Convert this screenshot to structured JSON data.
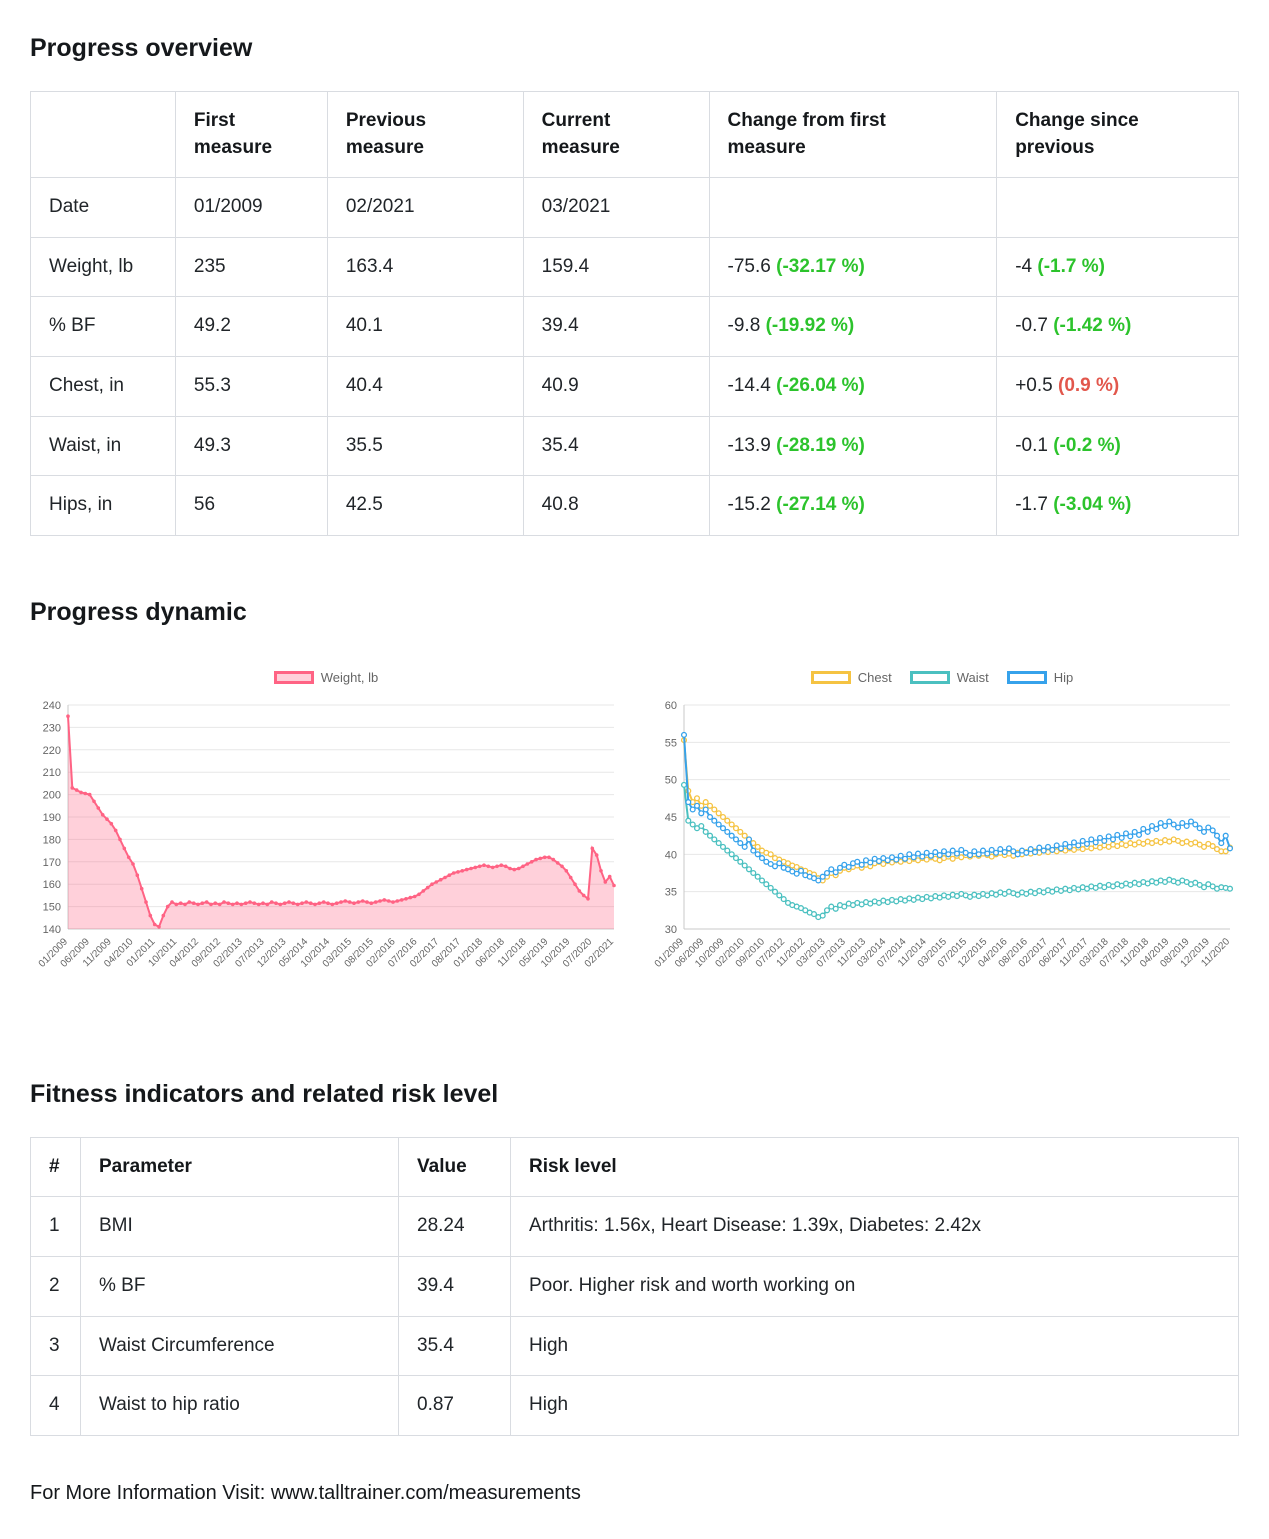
{
  "page": {
    "footer": "For More Information Visit: www.talltrainer.com/measurements"
  },
  "sections": {
    "overview": {
      "title": "Progress overview"
    },
    "dynamic": {
      "title": "Progress dynamic"
    },
    "risk": {
      "title": "Fitness indicators and related risk level"
    }
  },
  "colors": {
    "good": "#2cc32c",
    "bad": "#e2574c",
    "weight": "#ff6384",
    "chest": "#f5c342",
    "waist": "#4bc0c0",
    "hip": "#36a2eb"
  },
  "overview_table": {
    "headers": [
      "",
      "First measure",
      "Previous measure",
      "Current measure",
      "Change from first measure",
      "Change since previous"
    ],
    "rows": [
      {
        "label": "Date",
        "first": "01/2009",
        "previous": "02/2021",
        "current": "03/2021",
        "change_first": null,
        "change_previous": null
      },
      {
        "label": "Weight, lb",
        "first": "235",
        "previous": "163.4",
        "current": "159.4",
        "change_first": {
          "value": "-75.6",
          "pct": "(-32.17 %)",
          "trend": "good"
        },
        "change_previous": {
          "value": "-4",
          "pct": "(-1.7 %)",
          "trend": "good"
        }
      },
      {
        "label": "% BF",
        "first": "49.2",
        "previous": "40.1",
        "current": "39.4",
        "change_first": {
          "value": "-9.8",
          "pct": "(-19.92 %)",
          "trend": "good"
        },
        "change_previous": {
          "value": "-0.7",
          "pct": "(-1.42 %)",
          "trend": "good"
        }
      },
      {
        "label": "Chest, in",
        "first": "55.3",
        "previous": "40.4",
        "current": "40.9",
        "change_first": {
          "value": "-14.4",
          "pct": "(-26.04 %)",
          "trend": "good"
        },
        "change_previous": {
          "value": "+0.5",
          "pct": "(0.9 %)",
          "trend": "bad"
        }
      },
      {
        "label": "Waist, in",
        "first": "49.3",
        "previous": "35.5",
        "current": "35.4",
        "change_first": {
          "value": "-13.9",
          "pct": "(-28.19 %)",
          "trend": "good"
        },
        "change_previous": {
          "value": "-0.1",
          "pct": "(-0.2 %)",
          "trend": "good"
        }
      },
      {
        "label": "Hips, in",
        "first": "56",
        "previous": "42.5",
        "current": "40.8",
        "change_first": {
          "value": "-15.2",
          "pct": "(-27.14 %)",
          "trend": "good"
        },
        "change_previous": {
          "value": "-1.7",
          "pct": "(-3.04 %)",
          "trend": "good"
        }
      }
    ]
  },
  "chart_data": [
    {
      "type": "line",
      "ylim": [
        140,
        240
      ],
      "ystep": 10,
      "grid": true,
      "legend_position": "top",
      "x_ticks": [
        "01/2009",
        "06/2009",
        "11/2009",
        "04/2010",
        "01/2011",
        "10/2011",
        "04/2012",
        "09/2012",
        "02/2013",
        "07/2013",
        "12/2013",
        "05/2014",
        "10/2014",
        "03/2015",
        "08/2015",
        "02/2016",
        "07/2016",
        "02/2017",
        "08/2017",
        "01/2018",
        "06/2018",
        "11/2018",
        "05/2019",
        "10/2019",
        "07/2020",
        "02/2021"
      ],
      "series": [
        {
          "name": "Weight, lb",
          "color": "#ff6384",
          "fill_color": "rgba(255,99,132,0.3)",
          "marker": "filled",
          "values": [
            235,
            203,
            202,
            201,
            200.5,
            200,
            197,
            194,
            191,
            189,
            187,
            184,
            180,
            176,
            172,
            169,
            164,
            158,
            152,
            146,
            142,
            141,
            146,
            150,
            152,
            151,
            151.5,
            151,
            152,
            151.5,
            151,
            151.5,
            152,
            151,
            151.5,
            151,
            152,
            151.5,
            151,
            151.5,
            151,
            151.5,
            152,
            151.5,
            151,
            151.5,
            151,
            152,
            151.5,
            151,
            151.5,
            152,
            151.5,
            151,
            151.5,
            152,
            151.5,
            151,
            151.5,
            152,
            151.5,
            151,
            151.5,
            152,
            152.5,
            152,
            151.5,
            152,
            152.5,
            152,
            151.5,
            152,
            152.5,
            153,
            152.5,
            152,
            152.5,
            153,
            153.5,
            154,
            154.5,
            155.5,
            157,
            158.5,
            160,
            161,
            162,
            163,
            164,
            165,
            165.5,
            166,
            166.5,
            167,
            167.5,
            168,
            168.5,
            168,
            167.5,
            168,
            168.5,
            168,
            167,
            166.5,
            167,
            168,
            169,
            170,
            171,
            171.5,
            172,
            172,
            171,
            169.5,
            168,
            166,
            163,
            160,
            157,
            155,
            153.5,
            176,
            173,
            166,
            161,
            163.4,
            159.4
          ]
        }
      ]
    },
    {
      "type": "line",
      "ylim": [
        30,
        60
      ],
      "ystep": 5,
      "grid": true,
      "legend_position": "top",
      "x_ticks": [
        "01/2009",
        "06/2009",
        "10/2009",
        "02/2010",
        "09/2010",
        "07/2012",
        "11/2012",
        "03/2013",
        "07/2013",
        "11/2013",
        "03/2014",
        "07/2014",
        "11/2014",
        "03/2015",
        "07/2015",
        "12/2015",
        "04/2016",
        "08/2016",
        "02/2017",
        "06/2017",
        "11/2017",
        "03/2018",
        "07/2018",
        "11/2018",
        "04/2019",
        "08/2019",
        "12/2019",
        "11/2020"
      ],
      "series": [
        {
          "name": "Chest",
          "color": "#f5c342",
          "fill_color": null,
          "marker": "open",
          "values": [
            55.3,
            48.5,
            47,
            47.5,
            46.5,
            47,
            46.5,
            46,
            45.5,
            45,
            44.5,
            44,
            43.5,
            43,
            42.5,
            42,
            41.5,
            41,
            40.5,
            40.2,
            40,
            39.5,
            39.3,
            39,
            38.8,
            38.5,
            38.3,
            38,
            37.8,
            37.5,
            37.3,
            36.8,
            36.5,
            37,
            37.5,
            37.2,
            37.8,
            38.2,
            38,
            38.3,
            38.5,
            38.2,
            38.6,
            38.4,
            38.8,
            39,
            38.7,
            39.1,
            38.9,
            39.2,
            39,
            39.3,
            39.1,
            39.4,
            39.2,
            39.5,
            39.3,
            39.6,
            39.4,
            39.2,
            39.5,
            39.7,
            39.4,
            39.8,
            39.6,
            39.9,
            39.7,
            40,
            39.8,
            40.1,
            39.9,
            39.7,
            40,
            40.2,
            39.9,
            40.1,
            39.8,
            40.2,
            40,
            40.3,
            40.1,
            40.4,
            40.2,
            40.5,
            40.3,
            40.6,
            40.4,
            40.7,
            40.5,
            40.8,
            40.6,
            40.9,
            40.7,
            41,
            40.8,
            41.1,
            40.9,
            41.2,
            41,
            41.3,
            41.1,
            41.4,
            41.2,
            41.5,
            41.3,
            41.6,
            41.4,
            41.7,
            41.5,
            41.8,
            41.6,
            41.9,
            41.7,
            42,
            41.8,
            41.5,
            41.7,
            41.4,
            41.6,
            41.3,
            41,
            41.4,
            41.1,
            40.7,
            40.4,
            40.4,
            40.9
          ]
        },
        {
          "name": "Waist",
          "color": "#4bc0c0",
          "fill_color": null,
          "marker": "open",
          "values": [
            49.3,
            44.5,
            44,
            43.5,
            43.8,
            43,
            42.5,
            42,
            41.5,
            41,
            40.5,
            40,
            39.5,
            39,
            38.5,
            38,
            37.5,
            37,
            36.5,
            36,
            35.5,
            35,
            34.5,
            34,
            33.5,
            33.2,
            33,
            32.8,
            32.5,
            32.2,
            32,
            31.6,
            31.8,
            32.5,
            33,
            32.7,
            33.2,
            33,
            33.4,
            33.2,
            33.5,
            33.3,
            33.6,
            33.4,
            33.7,
            33.5,
            33.8,
            33.6,
            33.9,
            33.7,
            34,
            33.8,
            34.1,
            33.9,
            34.2,
            34,
            34.3,
            34.1,
            34.4,
            34.2,
            34.5,
            34.3,
            34.6,
            34.4,
            34.7,
            34.5,
            34.3,
            34.6,
            34.4,
            34.7,
            34.5,
            34.8,
            34.6,
            34.9,
            34.7,
            35,
            34.8,
            34.6,
            34.9,
            34.7,
            35,
            34.8,
            35.1,
            34.9,
            35.2,
            35,
            35.3,
            35.1,
            35.4,
            35.2,
            35.5,
            35.3,
            35.6,
            35.4,
            35.7,
            35.5,
            35.8,
            35.6,
            35.9,
            35.7,
            36,
            35.8,
            36.1,
            35.9,
            36.2,
            36,
            36.3,
            36.1,
            36.4,
            36.2,
            36.5,
            36.3,
            36.6,
            36.4,
            36.2,
            36.5,
            36.3,
            36,
            36.2,
            35.9,
            35.6,
            36,
            35.7,
            35.4,
            35.6,
            35.5,
            35.4
          ]
        },
        {
          "name": "Hip",
          "color": "#36a2eb",
          "fill_color": null,
          "marker": "open",
          "values": [
            56,
            47,
            46,
            46.5,
            45.5,
            46,
            45,
            44.5,
            44,
            43.5,
            43,
            42.5,
            42,
            41.5,
            41,
            42,
            40.5,
            40,
            39.5,
            39,
            38.7,
            38.4,
            38.8,
            38.2,
            38,
            37.7,
            37.4,
            37.8,
            37.2,
            37,
            36.8,
            36.5,
            37,
            37.5,
            38,
            37.6,
            38.2,
            38.6,
            38.3,
            38.8,
            39,
            38.6,
            39.2,
            38.9,
            39.4,
            39.1,
            39.5,
            39.2,
            39.6,
            39.3,
            39.8,
            39.4,
            40,
            39.6,
            40.1,
            39.7,
            40.2,
            39.8,
            40.3,
            39.9,
            40.4,
            40,
            40.5,
            40.1,
            40.6,
            40.2,
            39.9,
            40.4,
            40,
            40.5,
            40.1,
            40.6,
            40.2,
            40.7,
            40.3,
            40.8,
            40.4,
            40,
            40.5,
            40.2,
            40.7,
            40.3,
            40.9,
            40.5,
            41,
            40.6,
            41.2,
            40.8,
            41.4,
            41,
            41.6,
            41.2,
            41.8,
            41.4,
            42,
            41.6,
            42.2,
            41.8,
            42.4,
            42,
            42.6,
            42.2,
            42.8,
            42.4,
            43,
            42.6,
            43.4,
            43,
            43.8,
            43.4,
            44.2,
            43.8,
            44.4,
            44,
            43.6,
            44.2,
            43.8,
            44.4,
            44,
            43.5,
            43,
            43.6,
            43.2,
            42.5,
            41.5,
            42.5,
            40.8
          ]
        }
      ]
    }
  ],
  "risk_table": {
    "headers": [
      "#",
      "Parameter",
      "Value",
      "Risk level"
    ],
    "rows": [
      {
        "num": "1",
        "parameter": "BMI",
        "value": "28.24",
        "risk": "Arthritis: 1.56x, Heart Disease: 1.39x, Diabetes: 2.42x"
      },
      {
        "num": "2",
        "parameter": "% BF",
        "value": "39.4",
        "risk": "Poor. Higher risk and worth working on"
      },
      {
        "num": "3",
        "parameter": "Waist Circumference",
        "value": "35.4",
        "risk": "High"
      },
      {
        "num": "4",
        "parameter": "Waist to hip ratio",
        "value": "0.87",
        "risk": "High"
      }
    ]
  }
}
